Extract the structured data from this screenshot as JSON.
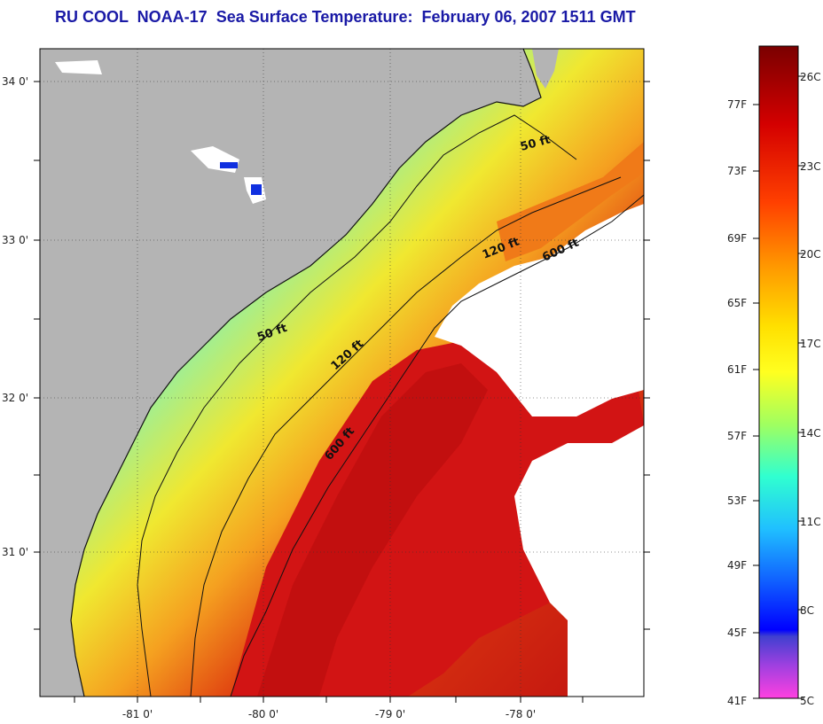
{
  "title": "RU COOL  NOAA-17  Sea Surface Temperature:  February 06, 2007 1511 GMT",
  "lat_labels": [
    "34 0'",
    "33 0'",
    "32 0'",
    "31 0'"
  ],
  "lon_labels": [
    "-81 0'",
    "-80 0'",
    "-79 0'",
    "-78 0'"
  ],
  "contours": {
    "c50_a": "50 ft",
    "c50_b": "50 ft",
    "c120_a": "120 ft",
    "c120_b": "120 ft",
    "c600_a": "600 ft",
    "c600_b": "600 ft"
  },
  "colorbar": {
    "fahrenheit": [
      "77F",
      "73F",
      "69F",
      "65F",
      "61F",
      "57F",
      "53F",
      "49F",
      "45F",
      "41F"
    ],
    "celsius": [
      "26C",
      "23C",
      "20C",
      "17C",
      "14C",
      "11C",
      "8C",
      "5C"
    ]
  },
  "colors": {
    "land": "#b4b4b4",
    "title": "#1a1aa6",
    "cloud_mask": "#ffffff"
  }
}
